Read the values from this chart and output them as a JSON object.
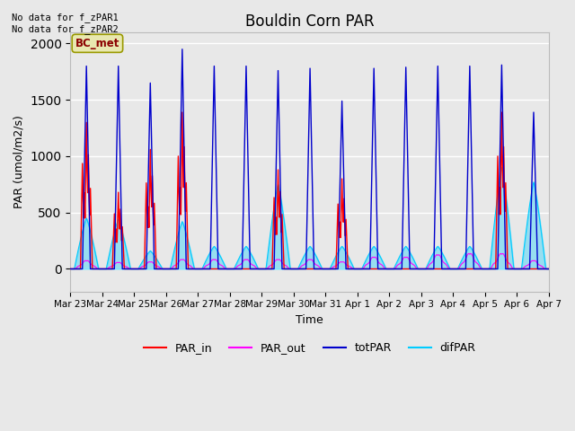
{
  "title": "Bouldin Corn PAR",
  "ylabel": "PAR (umol/m2/s)",
  "xlabel": "Time",
  "ylim": [
    -200,
    2100
  ],
  "annotation_text": "No data for f_zPAR1\nNo data for f_zPAR2",
  "bc_met_label": "BC_met",
  "bc_met_color": "#e8e8b0",
  "bc_met_text_color": "#8B0000",
  "x_tick_labels": [
    "Mar 23",
    "Mar 24",
    "Mar 25",
    "Mar 26",
    "Mar 27",
    "Mar 28",
    "Mar 29",
    "Mar 30",
    "Mar 31",
    "Apr 1",
    "Apr 2",
    "Apr 3",
    "Apr 4",
    "Apr 5",
    "Apr 6",
    "Apr 7"
  ],
  "background_color": "#e8e8e8",
  "plot_bg_color": "#e8e8e8",
  "grid_color": "#ffffff",
  "num_days": 15,
  "totPAR_peaks": [
    1800,
    1800,
    1650,
    1950,
    1800,
    1800,
    1760,
    1780,
    1490,
    1780,
    1790,
    1800,
    1800,
    1810,
    1390
  ],
  "PAR_in_peaks": [
    1300,
    680,
    1060,
    1390,
    0,
    0,
    880,
    0,
    800,
    0,
    0,
    0,
    0,
    1390,
    0
  ],
  "PAR_out_peaks": [
    70,
    55,
    60,
    80,
    80,
    80,
    80,
    80,
    60,
    100,
    100,
    120,
    130,
    130,
    70
  ],
  "difPAR_peaks": [
    450,
    440,
    160,
    420,
    200,
    200,
    750,
    200,
    200,
    200,
    200,
    200,
    200,
    900,
    770
  ],
  "colors": {
    "totPAR": "#0000cc",
    "PAR_in": "#ff0000",
    "PAR_out": "#ff00ff",
    "difPAR": "#00ccff"
  },
  "figsize": [
    6.4,
    4.8
  ],
  "dpi": 100
}
